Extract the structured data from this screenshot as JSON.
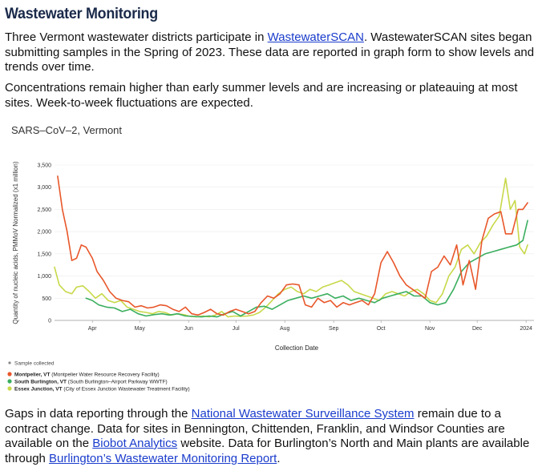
{
  "title": "Wastewater Monitoring",
  "p1": {
    "before": "Three Vermont wastewater districts participate in ",
    "link": "WastewaterSCAN",
    "after": ". WastewaterSCAN sites began submitting samples in the Spring of 2023. These data are reported in graph form to show levels and trends over time."
  },
  "p2": "Concentrations remain higher than early summer levels and are increasing or plateauing at most sites. Week-to-week fluctuations are expected.",
  "p3": {
    "t1": "Gaps in data reporting through the ",
    "link1": "National Wastewater Surveillance System",
    "t2": " remain due to a contract change. Data for sites in Bennington, Chittenden, Franklin, and Windsor Counties are available on the ",
    "link2": "Biobot Analytics",
    "t3": " website. Data for Burlington’s North and Main plants are available through ",
    "link3": "Burlington’s Wastewater Monitoring Report",
    "t4": "."
  },
  "chart_data": {
    "type": "line",
    "title": "SARS–CoV–2, Vermont",
    "ylabel": "Quantity of nucleic acids, PMMoV Normalized (x1 million)",
    "xlabel": "Collection Date",
    "ylim": [
      0,
      3500
    ],
    "yticks": [
      0,
      500,
      1000,
      1500,
      2000,
      2500,
      3000,
      3500
    ],
    "ytick_labels": [
      "0",
      "500",
      "1,000",
      "1,500",
      "2,000",
      "2,500",
      "3,000",
      "3,500"
    ],
    "xlim": [
      "2023-03-08",
      "2024-01-06"
    ],
    "xticks": [
      {
        "date": "2023-04-01",
        "label": "Apr"
      },
      {
        "date": "2023-05-01",
        "label": "May"
      },
      {
        "date": "2023-06-01",
        "label": "Jun"
      },
      {
        "date": "2023-07-01",
        "label": "Jul"
      },
      {
        "date": "2023-08-01",
        "label": "Aug"
      },
      {
        "date": "2023-09-01",
        "label": "Sep"
      },
      {
        "date": "2023-10-01",
        "label": "Oct"
      },
      {
        "date": "2023-11-01",
        "label": "Nov"
      },
      {
        "date": "2023-12-01",
        "label": "Dec"
      },
      {
        "date": "2024-01-01",
        "label": "2024"
      }
    ],
    "legend": {
      "marker_label": "Sample collected",
      "placement": "bottom-left"
    },
    "series": [
      {
        "name": "Montpelier, VT",
        "detail": "(Montpelier Water Resource Recovery Facility)",
        "color": "#e8572a",
        "points": [
          [
            "2023-03-10",
            3250
          ],
          [
            "2023-03-13",
            2500
          ],
          [
            "2023-03-16",
            2000
          ],
          [
            "2023-03-19",
            1350
          ],
          [
            "2023-03-22",
            1400
          ],
          [
            "2023-03-25",
            1700
          ],
          [
            "2023-03-28",
            1650
          ],
          [
            "2023-04-01",
            1400
          ],
          [
            "2023-04-04",
            1100
          ],
          [
            "2023-04-08",
            900
          ],
          [
            "2023-04-12",
            650
          ],
          [
            "2023-04-16",
            500
          ],
          [
            "2023-04-20",
            450
          ],
          [
            "2023-04-24",
            420
          ],
          [
            "2023-04-28",
            300
          ],
          [
            "2023-05-02",
            330
          ],
          [
            "2023-05-06",
            280
          ],
          [
            "2023-05-10",
            300
          ],
          [
            "2023-05-14",
            350
          ],
          [
            "2023-05-18",
            330
          ],
          [
            "2023-05-22",
            250
          ],
          [
            "2023-05-26",
            200
          ],
          [
            "2023-05-30",
            300
          ],
          [
            "2023-06-03",
            150
          ],
          [
            "2023-06-07",
            120
          ],
          [
            "2023-06-11",
            180
          ],
          [
            "2023-06-15",
            250
          ],
          [
            "2023-06-19",
            150
          ],
          [
            "2023-06-23",
            120
          ],
          [
            "2023-06-27",
            200
          ],
          [
            "2023-07-01",
            250
          ],
          [
            "2023-07-05",
            200
          ],
          [
            "2023-07-09",
            150
          ],
          [
            "2023-07-13",
            200
          ],
          [
            "2023-07-17",
            400
          ],
          [
            "2023-07-21",
            550
          ],
          [
            "2023-07-25",
            500
          ],
          [
            "2023-07-29",
            600
          ],
          [
            "2023-08-02",
            800
          ],
          [
            "2023-08-06",
            820
          ],
          [
            "2023-08-10",
            800
          ],
          [
            "2023-08-14",
            350
          ],
          [
            "2023-08-18",
            300
          ],
          [
            "2023-08-22",
            500
          ],
          [
            "2023-08-26",
            400
          ],
          [
            "2023-08-30",
            450
          ],
          [
            "2023-09-03",
            300
          ],
          [
            "2023-09-07",
            400
          ],
          [
            "2023-09-11",
            350
          ],
          [
            "2023-09-15",
            400
          ],
          [
            "2023-09-19",
            450
          ],
          [
            "2023-09-23",
            350
          ],
          [
            "2023-09-27",
            600
          ],
          [
            "2023-10-01",
            1300
          ],
          [
            "2023-10-05",
            1550
          ],
          [
            "2023-10-09",
            1300
          ],
          [
            "2023-10-13",
            1000
          ],
          [
            "2023-10-17",
            800
          ],
          [
            "2023-10-21",
            700
          ],
          [
            "2023-10-25",
            600
          ],
          [
            "2023-10-29",
            500
          ],
          [
            "2023-11-02",
            1100
          ],
          [
            "2023-11-06",
            1200
          ],
          [
            "2023-11-10",
            1450
          ],
          [
            "2023-11-14",
            1250
          ],
          [
            "2023-11-18",
            1700
          ],
          [
            "2023-11-22",
            800
          ],
          [
            "2023-11-26",
            1350
          ],
          [
            "2023-11-30",
            700
          ],
          [
            "2023-12-04",
            1800
          ],
          [
            "2023-12-08",
            2300
          ],
          [
            "2023-12-12",
            2400
          ],
          [
            "2023-12-16",
            2450
          ],
          [
            "2023-12-19",
            1950
          ],
          [
            "2023-12-23",
            1950
          ],
          [
            "2023-12-27",
            2500
          ],
          [
            "2023-12-30",
            2500
          ],
          [
            "2024-01-02",
            2650
          ]
        ]
      },
      {
        "name": "South Burlington, VT",
        "detail": "(South Burlington–Airport Parkway WWTF)",
        "color": "#3aae5e",
        "points": [
          [
            "2023-03-28",
            500
          ],
          [
            "2023-04-01",
            450
          ],
          [
            "2023-04-05",
            350
          ],
          [
            "2023-04-10",
            300
          ],
          [
            "2023-04-15",
            280
          ],
          [
            "2023-04-20",
            200
          ],
          [
            "2023-04-25",
            250
          ],
          [
            "2023-04-30",
            150
          ],
          [
            "2023-05-05",
            100
          ],
          [
            "2023-05-10",
            130
          ],
          [
            "2023-05-15",
            150
          ],
          [
            "2023-05-20",
            120
          ],
          [
            "2023-05-25",
            150
          ],
          [
            "2023-05-30",
            100
          ],
          [
            "2023-06-04",
            90
          ],
          [
            "2023-06-09",
            80
          ],
          [
            "2023-06-14",
            100
          ],
          [
            "2023-06-19",
            80
          ],
          [
            "2023-06-24",
            150
          ],
          [
            "2023-06-29",
            200
          ],
          [
            "2023-07-04",
            100
          ],
          [
            "2023-07-09",
            200
          ],
          [
            "2023-07-14",
            300
          ],
          [
            "2023-07-19",
            320
          ],
          [
            "2023-07-24",
            250
          ],
          [
            "2023-07-29",
            350
          ],
          [
            "2023-08-03",
            450
          ],
          [
            "2023-08-08",
            500
          ],
          [
            "2023-08-13",
            550
          ],
          [
            "2023-08-18",
            500
          ],
          [
            "2023-08-23",
            550
          ],
          [
            "2023-08-28",
            600
          ],
          [
            "2023-09-02",
            500
          ],
          [
            "2023-09-07",
            550
          ],
          [
            "2023-09-12",
            450
          ],
          [
            "2023-09-17",
            500
          ],
          [
            "2023-09-22",
            450
          ],
          [
            "2023-09-27",
            400
          ],
          [
            "2023-10-02",
            500
          ],
          [
            "2023-10-07",
            550
          ],
          [
            "2023-10-12",
            600
          ],
          [
            "2023-10-17",
            650
          ],
          [
            "2023-10-22",
            550
          ],
          [
            "2023-10-27",
            550
          ],
          [
            "2023-11-01",
            400
          ],
          [
            "2023-11-06",
            350
          ],
          [
            "2023-11-11",
            400
          ],
          [
            "2023-11-16",
            700
          ],
          [
            "2023-11-21",
            1100
          ],
          [
            "2023-11-26",
            1300
          ],
          [
            "2023-12-01",
            1400
          ],
          [
            "2023-12-06",
            1500
          ],
          [
            "2023-12-11",
            1550
          ],
          [
            "2023-12-16",
            1600
          ],
          [
            "2023-12-21",
            1650
          ],
          [
            "2023-12-26",
            1700
          ],
          [
            "2023-12-30",
            1800
          ],
          [
            "2024-01-02",
            2250
          ]
        ]
      },
      {
        "name": "Essex Junction, VT",
        "detail": "(City of Essex Junction Wastewater Treatment Facility)",
        "color": "#c8d84a",
        "points": [
          [
            "2023-03-08",
            1200
          ],
          [
            "2023-03-11",
            800
          ],
          [
            "2023-03-15",
            650
          ],
          [
            "2023-03-19",
            600
          ],
          [
            "2023-03-22",
            750
          ],
          [
            "2023-03-26",
            780
          ],
          [
            "2023-03-30",
            650
          ],
          [
            "2023-04-03",
            500
          ],
          [
            "2023-04-07",
            600
          ],
          [
            "2023-04-11",
            450
          ],
          [
            "2023-04-15",
            400
          ],
          [
            "2023-04-19",
            450
          ],
          [
            "2023-04-23",
            300
          ],
          [
            "2023-04-27",
            250
          ],
          [
            "2023-05-01",
            200
          ],
          [
            "2023-05-05",
            180
          ],
          [
            "2023-05-09",
            150
          ],
          [
            "2023-05-13",
            200
          ],
          [
            "2023-05-17",
            180
          ],
          [
            "2023-05-21",
            120
          ],
          [
            "2023-05-25",
            150
          ],
          [
            "2023-05-29",
            130
          ],
          [
            "2023-06-02",
            90
          ],
          [
            "2023-06-06",
            80
          ],
          [
            "2023-06-10",
            100
          ],
          [
            "2023-06-14",
            80
          ],
          [
            "2023-06-18",
            120
          ],
          [
            "2023-06-22",
            200
          ],
          [
            "2023-06-26",
            80
          ],
          [
            "2023-06-30",
            100
          ],
          [
            "2023-07-04",
            90
          ],
          [
            "2023-07-08",
            100
          ],
          [
            "2023-07-12",
            120
          ],
          [
            "2023-07-16",
            180
          ],
          [
            "2023-07-20",
            300
          ],
          [
            "2023-07-24",
            450
          ],
          [
            "2023-07-28",
            600
          ],
          [
            "2023-08-01",
            700
          ],
          [
            "2023-08-05",
            750
          ],
          [
            "2023-08-09",
            650
          ],
          [
            "2023-08-13",
            600
          ],
          [
            "2023-08-17",
            700
          ],
          [
            "2023-08-21",
            650
          ],
          [
            "2023-08-25",
            750
          ],
          [
            "2023-08-29",
            800
          ],
          [
            "2023-09-02",
            850
          ],
          [
            "2023-09-06",
            900
          ],
          [
            "2023-09-10",
            800
          ],
          [
            "2023-09-14",
            650
          ],
          [
            "2023-09-18",
            600
          ],
          [
            "2023-09-22",
            550
          ],
          [
            "2023-09-26",
            500
          ],
          [
            "2023-09-30",
            450
          ],
          [
            "2023-10-04",
            600
          ],
          [
            "2023-10-08",
            650
          ],
          [
            "2023-10-12",
            600
          ],
          [
            "2023-10-16",
            550
          ],
          [
            "2023-10-20",
            650
          ],
          [
            "2023-10-24",
            700
          ],
          [
            "2023-10-28",
            600
          ],
          [
            "2023-11-01",
            450
          ],
          [
            "2023-11-05",
            400
          ],
          [
            "2023-11-09",
            600
          ],
          [
            "2023-11-13",
            1000
          ],
          [
            "2023-11-17",
            1200
          ],
          [
            "2023-11-21",
            1600
          ],
          [
            "2023-11-25",
            1700
          ],
          [
            "2023-11-29",
            1500
          ],
          [
            "2023-12-03",
            1750
          ],
          [
            "2023-12-07",
            1900
          ],
          [
            "2023-12-11",
            2150
          ],
          [
            "2023-12-15",
            2350
          ],
          [
            "2023-12-19",
            3200
          ],
          [
            "2023-12-22",
            2500
          ],
          [
            "2023-12-25",
            2700
          ],
          [
            "2023-12-28",
            1650
          ],
          [
            "2023-12-31",
            1500
          ],
          [
            "2024-01-02",
            1700
          ]
        ]
      }
    ]
  }
}
